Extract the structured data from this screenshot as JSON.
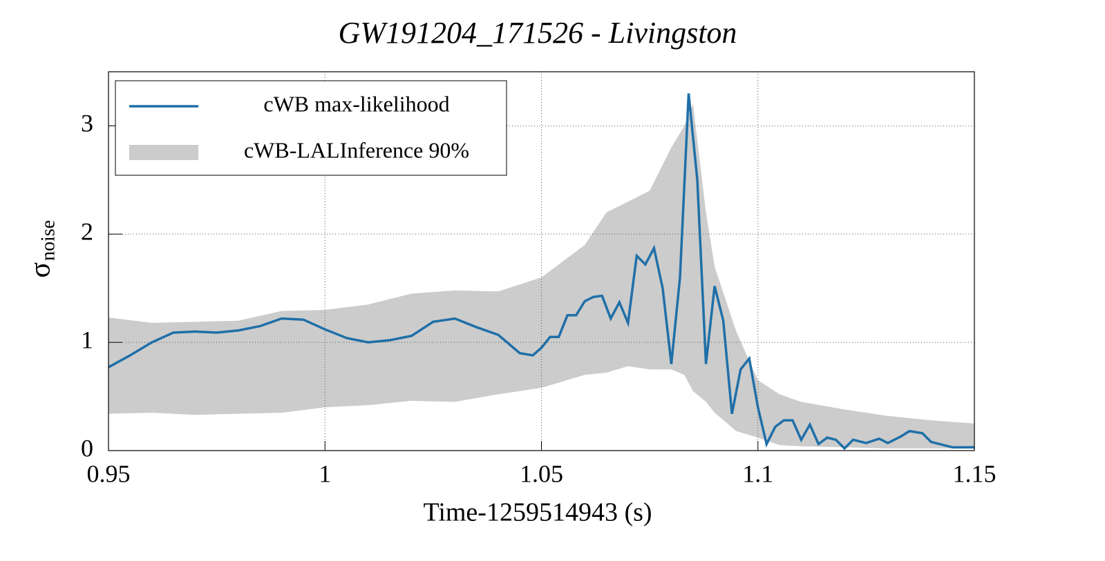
{
  "chart_data": {
    "type": "line",
    "title": "GW191204_171526 - Livingston",
    "xlabel": "Time-1259514943 (s)",
    "ylabel": "σ",
    "ylabel_sub": "noise",
    "xlim": [
      0.95,
      1.15
    ],
    "xticks": [
      0.95,
      1,
      1.05,
      1.1,
      1.15
    ],
    "ylim": [
      0,
      3.5
    ],
    "yticks": [
      0,
      1,
      2,
      3
    ],
    "grid": true,
    "legend": "upper left",
    "series": [
      {
        "name": "cWB max-likelihood",
        "color": "#1f6fa8",
        "x": [
          0.95,
          0.955,
          0.96,
          0.965,
          0.97,
          0.975,
          0.98,
          0.985,
          0.99,
          0.995,
          1.0,
          1.005,
          1.01,
          1.015,
          1.02,
          1.025,
          1.03,
          1.035,
          1.04,
          1.045,
          1.048,
          1.05,
          1.052,
          1.054,
          1.056,
          1.058,
          1.06,
          1.062,
          1.064,
          1.066,
          1.068,
          1.07,
          1.072,
          1.074,
          1.076,
          1.078,
          1.08,
          1.082,
          1.084,
          1.086,
          1.088,
          1.09,
          1.092,
          1.094,
          1.096,
          1.098,
          1.1,
          1.102,
          1.104,
          1.106,
          1.108,
          1.11,
          1.112,
          1.114,
          1.116,
          1.118,
          1.12,
          1.122,
          1.125,
          1.128,
          1.13,
          1.133,
          1.135,
          1.138,
          1.14,
          1.145,
          1.15
        ],
        "values": [
          0.77,
          0.88,
          1.0,
          1.09,
          1.1,
          1.09,
          1.11,
          1.15,
          1.22,
          1.21,
          1.12,
          1.04,
          1.0,
          1.02,
          1.06,
          1.19,
          1.22,
          1.14,
          1.07,
          0.9,
          0.88,
          0.95,
          1.05,
          1.05,
          1.25,
          1.25,
          1.38,
          1.42,
          1.43,
          1.22,
          1.37,
          1.18,
          1.8,
          1.72,
          1.87,
          1.5,
          0.8,
          1.6,
          3.3,
          2.5,
          0.8,
          1.52,
          1.2,
          0.34,
          0.75,
          0.85,
          0.4,
          0.06,
          0.22,
          0.28,
          0.28,
          0.1,
          0.24,
          0.06,
          0.12,
          0.1,
          0.02,
          0.1,
          0.07,
          0.11,
          0.07,
          0.13,
          0.18,
          0.16,
          0.08,
          0.03,
          0.03
        ]
      },
      {
        "name": "cWB-LALInference 90%",
        "color": "#cccccc",
        "x": [
          0.95,
          0.96,
          0.97,
          0.98,
          0.99,
          1.0,
          1.01,
          1.02,
          1.03,
          1.04,
          1.05,
          1.06,
          1.065,
          1.07,
          1.075,
          1.08,
          1.083,
          1.085,
          1.088,
          1.09,
          1.095,
          1.1,
          1.105,
          1.11,
          1.12,
          1.13,
          1.14,
          1.15
        ],
        "lower": [
          0.34,
          0.35,
          0.33,
          0.34,
          0.35,
          0.4,
          0.42,
          0.46,
          0.45,
          0.52,
          0.58,
          0.7,
          0.72,
          0.78,
          0.75,
          0.75,
          0.7,
          0.55,
          0.45,
          0.35,
          0.18,
          0.12,
          0.05,
          0.04,
          0.03,
          0.02,
          0.02,
          0.02
        ],
        "upper": [
          1.23,
          1.18,
          1.19,
          1.2,
          1.29,
          1.3,
          1.35,
          1.45,
          1.48,
          1.47,
          1.6,
          1.9,
          2.2,
          2.3,
          2.4,
          2.8,
          3.0,
          3.2,
          2.2,
          1.7,
          1.1,
          0.65,
          0.52,
          0.45,
          0.38,
          0.32,
          0.28,
          0.25
        ]
      }
    ]
  }
}
